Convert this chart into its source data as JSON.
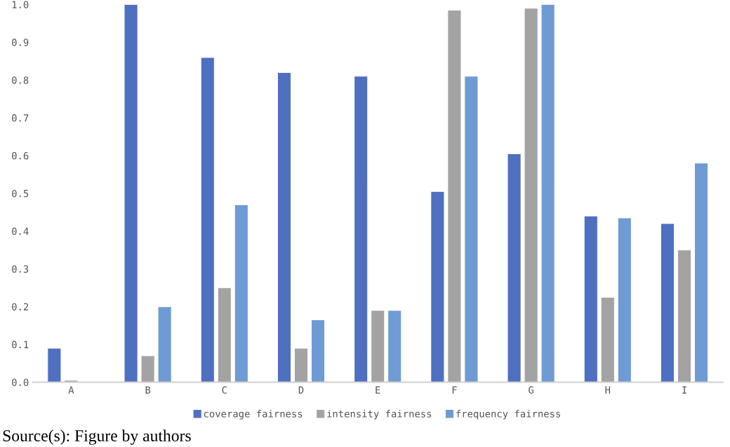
{
  "chart_data": {
    "type": "bar",
    "categories": [
      "A",
      "B",
      "C",
      "D",
      "E",
      "F",
      "G",
      "H",
      "I"
    ],
    "series": [
      {
        "name": "coverage fairness",
        "color": "#4f6fc0",
        "values": [
          0.09,
          1.0,
          0.86,
          0.82,
          0.81,
          0.505,
          0.605,
          0.44,
          0.42
        ]
      },
      {
        "name": "intensity fairness",
        "color": "#a3a3a3",
        "values": [
          0.005,
          0.07,
          0.25,
          0.09,
          0.19,
          0.985,
          0.99,
          0.225,
          0.35
        ]
      },
      {
        "name": "frequency fairness",
        "color": "#6e9bd3",
        "values": [
          null,
          0.2,
          0.47,
          0.165,
          0.19,
          0.81,
          1.0,
          0.435,
          0.58
        ]
      }
    ],
    "ylim": [
      0,
      1.0
    ],
    "yticks": [
      {
        "value": 0,
        "label": "0.0"
      },
      0.1,
      0.2,
      0.3,
      0.4,
      0.5,
      0.6,
      0.7,
      0.8,
      0.9,
      {
        "value": 1.0,
        "label": "1.0"
      }
    ],
    "grid": false,
    "legend": "bottom",
    "annotations": [
      "Source(s): Figure by authors"
    ]
  }
}
